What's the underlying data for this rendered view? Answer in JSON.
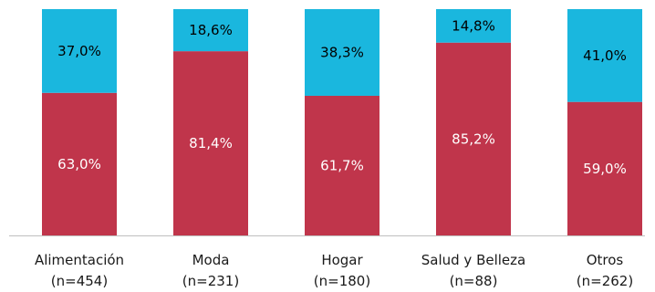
{
  "chart_data": {
    "type": "bar",
    "stacked": true,
    "stack_mode": "percent",
    "categories": [
      "Alimentación",
      "Moda",
      "Hogar",
      "Salud y Belleza",
      "Otros"
    ],
    "category_counts": [
      "(n=454)",
      "(n=231)",
      "(n=180)",
      "(n=88)",
      "(n=262)"
    ],
    "series": [
      {
        "values": [
          63.0,
          81.4,
          61.7,
          85.2,
          59.0
        ],
        "labels": [
          "63,0%",
          "81,4%",
          "61,7%",
          "85,2%",
          "59,0%"
        ],
        "color": "#c0354b",
        "label_color": "#ffffff"
      },
      {
        "values": [
          37.0,
          18.6,
          38.3,
          14.8,
          41.0
        ],
        "labels": [
          "37,0%",
          "18,6%",
          "38,3%",
          "14,8%",
          "41,0%"
        ],
        "color": "#1ab7de",
        "label_color": "#000000"
      }
    ],
    "ylim": [
      0,
      100
    ],
    "grid": false,
    "legend": false,
    "axis_color": "#bfbfbf"
  }
}
